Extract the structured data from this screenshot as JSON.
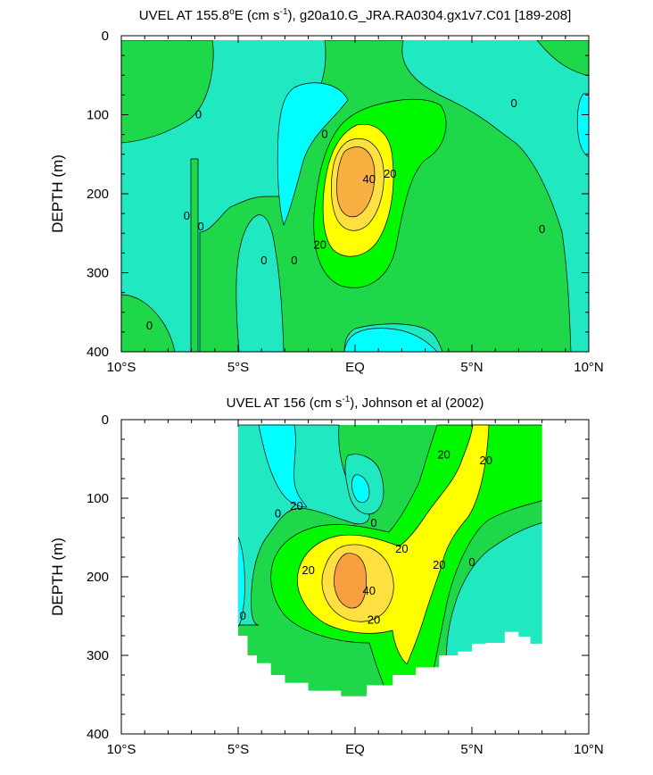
{
  "chart_data": [
    {
      "type": "contour",
      "title": "UVEL AT 155.8°E (cm s⁻¹), g20a10.G_JRA.RA0304.gx1v7.C01 [189-208]",
      "title_parts": [
        "UVEL AT 155.8",
        "o",
        "E (cm s",
        "-1",
        "), g20a10.G_JRA.RA0304.gx1v7.C01 [189-208]"
      ],
      "xlabel": "",
      "ylabel": "DEPTH (m)",
      "x_ticks": [
        "10°S",
        "5°S",
        "EQ",
        "5°N",
        "10°N"
      ],
      "x_tick_values": [
        -10,
        -5,
        0,
        5,
        10
      ],
      "y_ticks": [
        "0",
        "100",
        "200",
        "300",
        "400"
      ],
      "y_tick_values": [
        0,
        100,
        200,
        300,
        400
      ],
      "xlim": [
        -10,
        10
      ],
      "ylim": [
        400,
        0
      ],
      "data_ylim": [
        400,
        5
      ],
      "contour_levels": [
        -10,
        0,
        10,
        20,
        30,
        40,
        50
      ],
      "level_colors": {
        "below_-10": "#00ffff",
        "-10_0": "#20e8c0",
        "0_10": "#1fd84a",
        "10_20": "#00f800",
        "20_30": "#ffff00",
        "30_40": "#ffe040",
        "40_50": "#f8b040"
      },
      "core": {
        "lat": -0.3,
        "depth": 190,
        "max_speed": 50
      },
      "contour_labels": [
        {
          "text": "0",
          "lat": -6.7,
          "depth": 100
        },
        {
          "text": "0",
          "lat": -7.2,
          "depth": 228
        },
        {
          "text": "0",
          "lat": -6.6,
          "depth": 242
        },
        {
          "text": "0",
          "lat": -8.8,
          "depth": 367
        },
        {
          "text": "0",
          "lat": -3.9,
          "depth": 285
        },
        {
          "text": "0",
          "lat": -2.6,
          "depth": 285
        },
        {
          "text": "0",
          "lat": -1.3,
          "depth": 125
        },
        {
          "text": "0",
          "lat": 6.8,
          "depth": 86
        },
        {
          "text": "0",
          "lat": 8.0,
          "depth": 245
        },
        {
          "text": "20",
          "lat": 1.5,
          "depth": 175
        },
        {
          "text": "40",
          "lat": 0.6,
          "depth": 182
        },
        {
          "text": "20",
          "lat": -1.5,
          "depth": 265
        }
      ]
    },
    {
      "type": "contour",
      "title": "UVEL AT 156 (cm s⁻¹), Johnson et al (2002)",
      "title_parts": [
        "UVEL AT 156 (cm s",
        "-1",
        "), Johnson et al (2002)"
      ],
      "xlabel": "",
      "ylabel": "DEPTH (m)",
      "x_ticks": [
        "10°S",
        "5°S",
        "EQ",
        "5°N",
        "10°N"
      ],
      "x_tick_values": [
        -10,
        -5,
        0,
        5,
        10
      ],
      "y_ticks": [
        "0",
        "100",
        "200",
        "300",
        "400"
      ],
      "y_tick_values": [
        0,
        100,
        200,
        300,
        400
      ],
      "xlim": [
        -10,
        10
      ],
      "ylim": [
        400,
        0
      ],
      "data_xlim": [
        -5,
        8
      ],
      "data_bottom_depth": [
        [
          -5,
          265
        ],
        [
          -4.6,
          275
        ],
        [
          -4.2,
          300
        ],
        [
          -3.6,
          310
        ],
        [
          -3.0,
          325
        ],
        [
          -2.0,
          335
        ],
        [
          -0.6,
          345
        ],
        [
          0.5,
          352
        ],
        [
          1.6,
          338
        ],
        [
          2.6,
          325
        ],
        [
          3.6,
          315
        ],
        [
          4.4,
          300
        ],
        [
          5.0,
          295
        ],
        [
          5.6,
          285
        ],
        [
          6.4,
          284
        ],
        [
          7.0,
          270
        ],
        [
          7.5,
          276
        ],
        [
          8,
          285
        ]
      ],
      "contour_levels": [
        -10,
        0,
        10,
        20,
        30,
        40,
        50
      ],
      "core": {
        "lat": -0.4,
        "depth": 205,
        "max_speed": 50
      },
      "contour_labels": [
        {
          "text": "20",
          "lat": 3.8,
          "depth": 45
        },
        {
          "text": "20",
          "lat": 5.6,
          "depth": 52
        },
        {
          "text": "20",
          "lat": -2.5,
          "depth": 110
        },
        {
          "text": "0",
          "lat": -3.3,
          "depth": 120
        },
        {
          "text": "0",
          "lat": 0.8,
          "depth": 132
        },
        {
          "text": "20",
          "lat": 2.0,
          "depth": 165
        },
        {
          "text": "20",
          "lat": -2.0,
          "depth": 192
        },
        {
          "text": "40",
          "lat": 0.6,
          "depth": 218
        },
        {
          "text": "20",
          "lat": 3.6,
          "depth": 185
        },
        {
          "text": "0",
          "lat": 5.0,
          "depth": 182
        },
        {
          "text": "20",
          "lat": 0.8,
          "depth": 255
        },
        {
          "text": "0",
          "lat": -4.8,
          "depth": 250
        }
      ]
    }
  ]
}
